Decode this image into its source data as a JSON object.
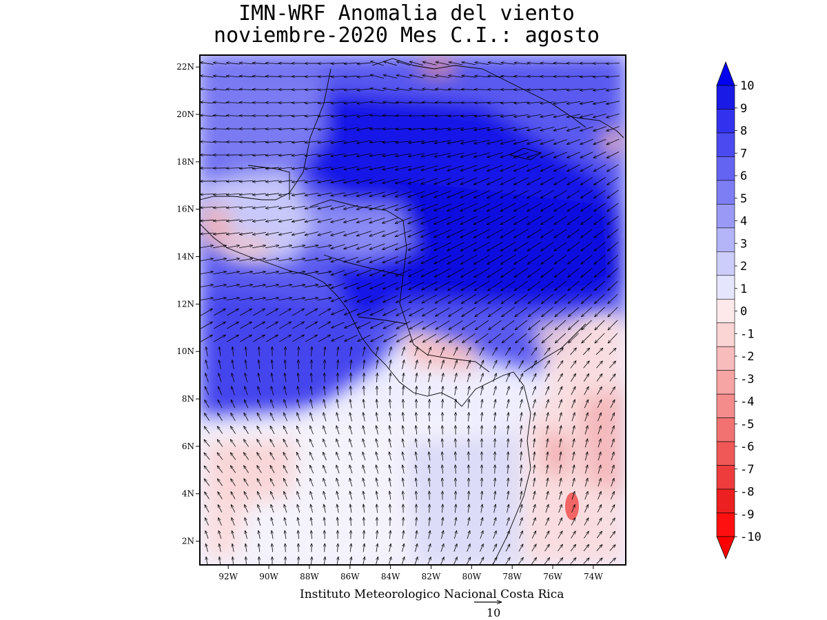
{
  "title": {
    "line1": "IMN-WRF Anomalia del viento",
    "line2": "noviembre-2020 Mes C.I.: agosto"
  },
  "map": {
    "region": "Central America / Caribbean",
    "lon_range": [
      -93.4,
      -72.4
    ],
    "lat_range": [
      1.0,
      22.5
    ],
    "lat_labels": [
      "22N",
      "20N",
      "18N",
      "16N",
      "14N",
      "12N",
      "10N",
      "8N",
      "6N",
      "4N",
      "2N"
    ],
    "lat_values": [
      22,
      20,
      18,
      16,
      14,
      12,
      10,
      8,
      6,
      4,
      2
    ],
    "lon_labels": [
      "92W",
      "90W",
      "88W",
      "86W",
      "84W",
      "82W",
      "80W",
      "78W",
      "76W",
      "74W"
    ],
    "lon_values": [
      -92,
      -90,
      -88,
      -86,
      -84,
      -82,
      -80,
      -78,
      -76,
      -74
    ]
  },
  "colorbar": {
    "labels": [
      "10",
      "9",
      "8",
      "7",
      "6",
      "5",
      "4",
      "3",
      "2",
      "1",
      "0",
      "-1",
      "-2",
      "-3",
      "-4",
      "-5",
      "-6",
      "-7",
      "-8",
      "-9",
      "-10"
    ],
    "colors": [
      "#1a1ae6",
      "#3232ee",
      "#4a4af0",
      "#6464f2",
      "#7e7ef4",
      "#9a9af6",
      "#b4b4f8",
      "#cdcdfb",
      "#e5e5fd",
      "#fde9e9",
      "#fbd4d4",
      "#f9bcbc",
      "#f7a4a4",
      "#f48c8c",
      "#f27272",
      "#f05858",
      "#ee3c3c",
      "#ec2020",
      "#ff1010"
    ],
    "top_arrow_color": "#0000ee",
    "bottom_arrow_color": "#ff0000"
  },
  "footer": {
    "credit": "Instituto Meteorologico Nacional Costa Rica",
    "reference_vector": "10"
  }
}
